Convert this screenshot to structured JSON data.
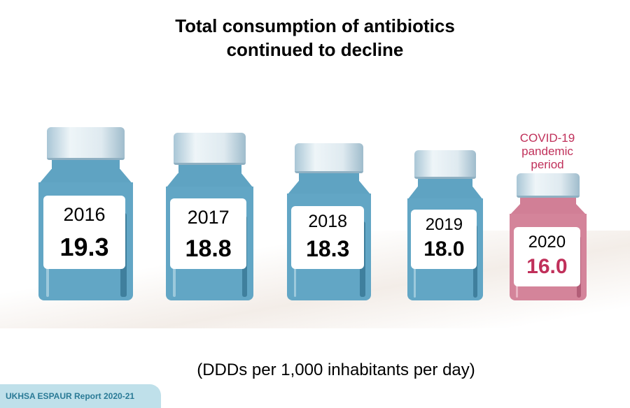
{
  "title_line1": "Total consumption of antibiotics",
  "title_line2": "continued to decline",
  "bottles": [
    {
      "year": "2016",
      "value": "19.3"
    },
    {
      "year": "2017",
      "value": "18.8"
    },
    {
      "year": "2018",
      "value": "18.3"
    },
    {
      "year": "2019",
      "value": "18.0"
    },
    {
      "year": "2020",
      "value": "16.0"
    }
  ],
  "covid_note": [
    "COVID-19",
    "pandemic",
    "period"
  ],
  "unit": "(DDDs per 1,000 inhabitants per day)",
  "footer": "UKHSA ESPAUR Report 2020-21",
  "colors": {
    "blue": "#62a6c5",
    "pink": "#d4849a",
    "highlight": "#c0305a"
  }
}
